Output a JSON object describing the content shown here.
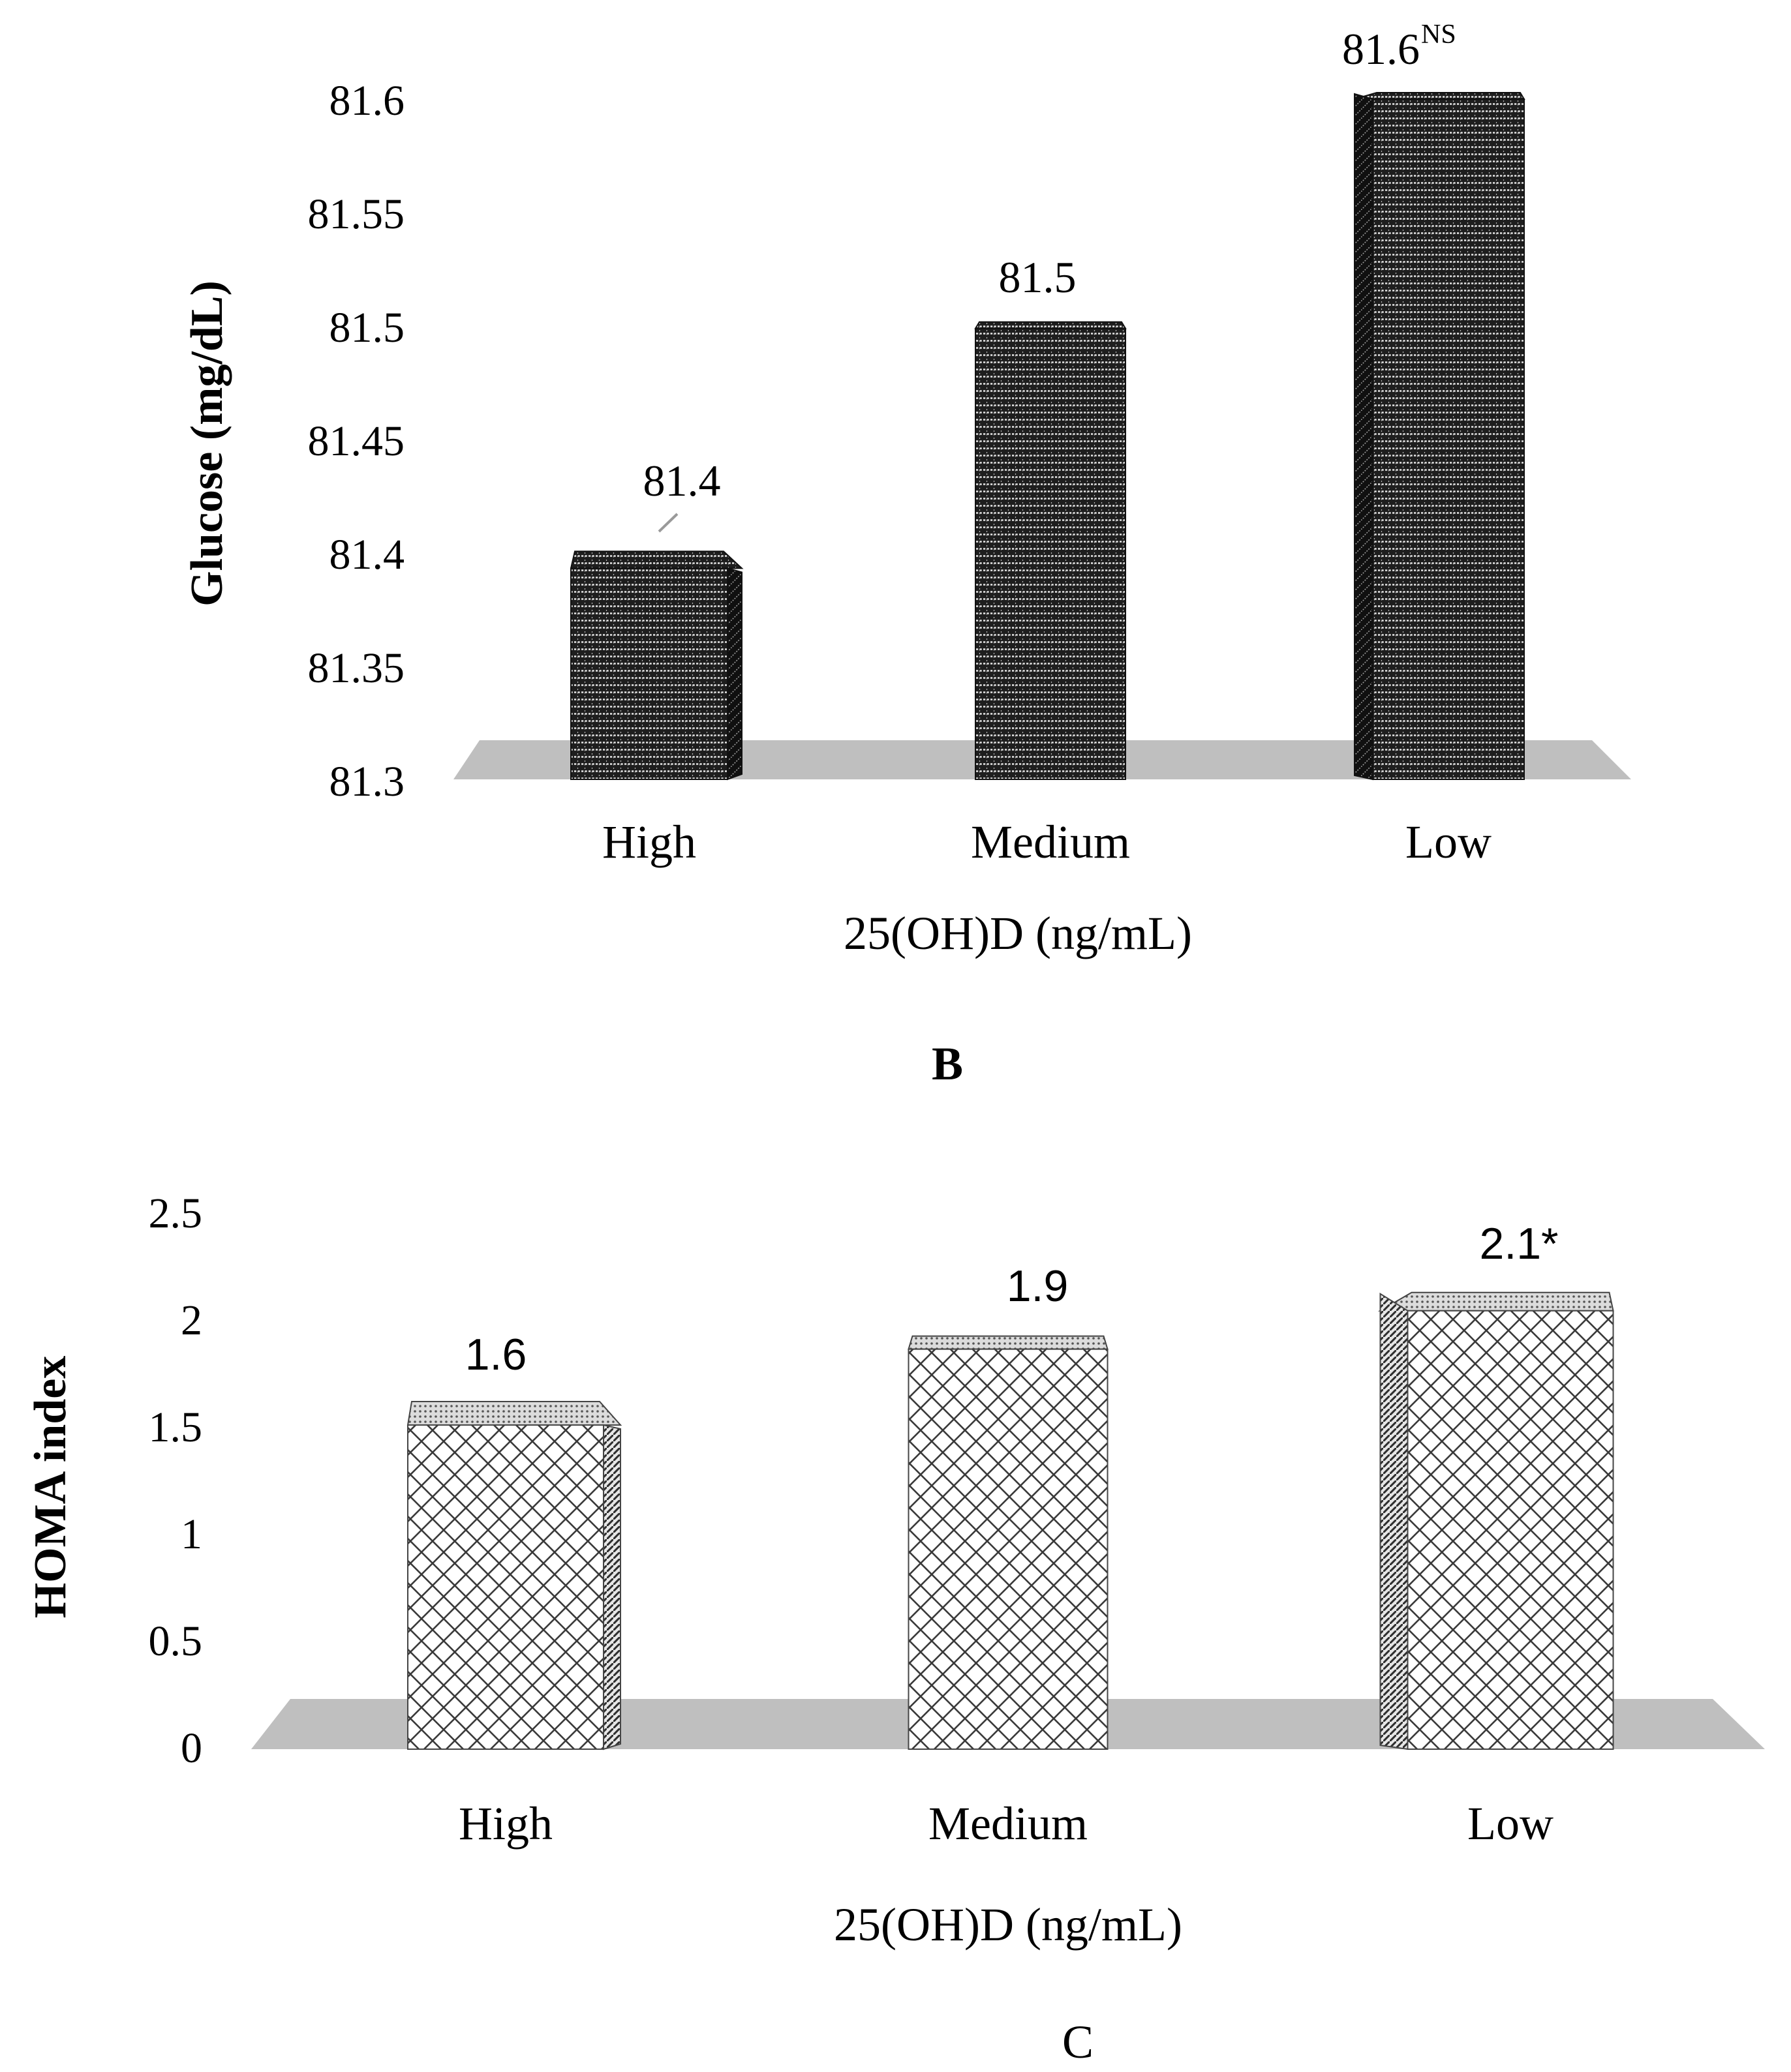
{
  "figure_labels": {
    "panel_b": "B",
    "panel_c": "C"
  },
  "chart_data": [
    {
      "type": "bar",
      "title": "",
      "categories": [
        "High",
        "Medium",
        "Low"
      ],
      "values": [
        81.4,
        81.5,
        81.6
      ],
      "value_labels": [
        "81.4",
        "81.5",
        "81.6"
      ],
      "annotation": "NS",
      "xlabel": "25(OH)D (ng/mL)",
      "ylabel": "Glucose (mg/dL)",
      "ylim": [
        81.3,
        81.6
      ],
      "yticks": [
        "81.3",
        "81.35",
        "81.4",
        "81.45",
        "81.5",
        "81.55",
        "81.6"
      ],
      "grid": false,
      "legend": "none",
      "colors": {
        "bar_bg": "#1e1e1e",
        "bar_line": "#dcdcdc",
        "floor": "#bfbfbf",
        "text": "#000000"
      }
    },
    {
      "type": "bar",
      "title": "",
      "categories": [
        "High",
        "Medium",
        "Low"
      ],
      "values": [
        1.6,
        1.9,
        2.1
      ],
      "value_labels": [
        "1.6",
        "1.9",
        "2.1*"
      ],
      "annotation": "",
      "xlabel": "25(OH)D (ng/mL)",
      "ylabel": "HOMA index",
      "ylim": [
        0,
        2.5
      ],
      "yticks": [
        "0",
        "0.5",
        "1",
        "1.5",
        "2",
        "2.5"
      ],
      "grid": false,
      "legend": "none",
      "colors": {
        "bar_bg": "#ffffff",
        "bar_line": "#333333",
        "floor": "#bfbfbf",
        "text": "#000000"
      }
    }
  ]
}
